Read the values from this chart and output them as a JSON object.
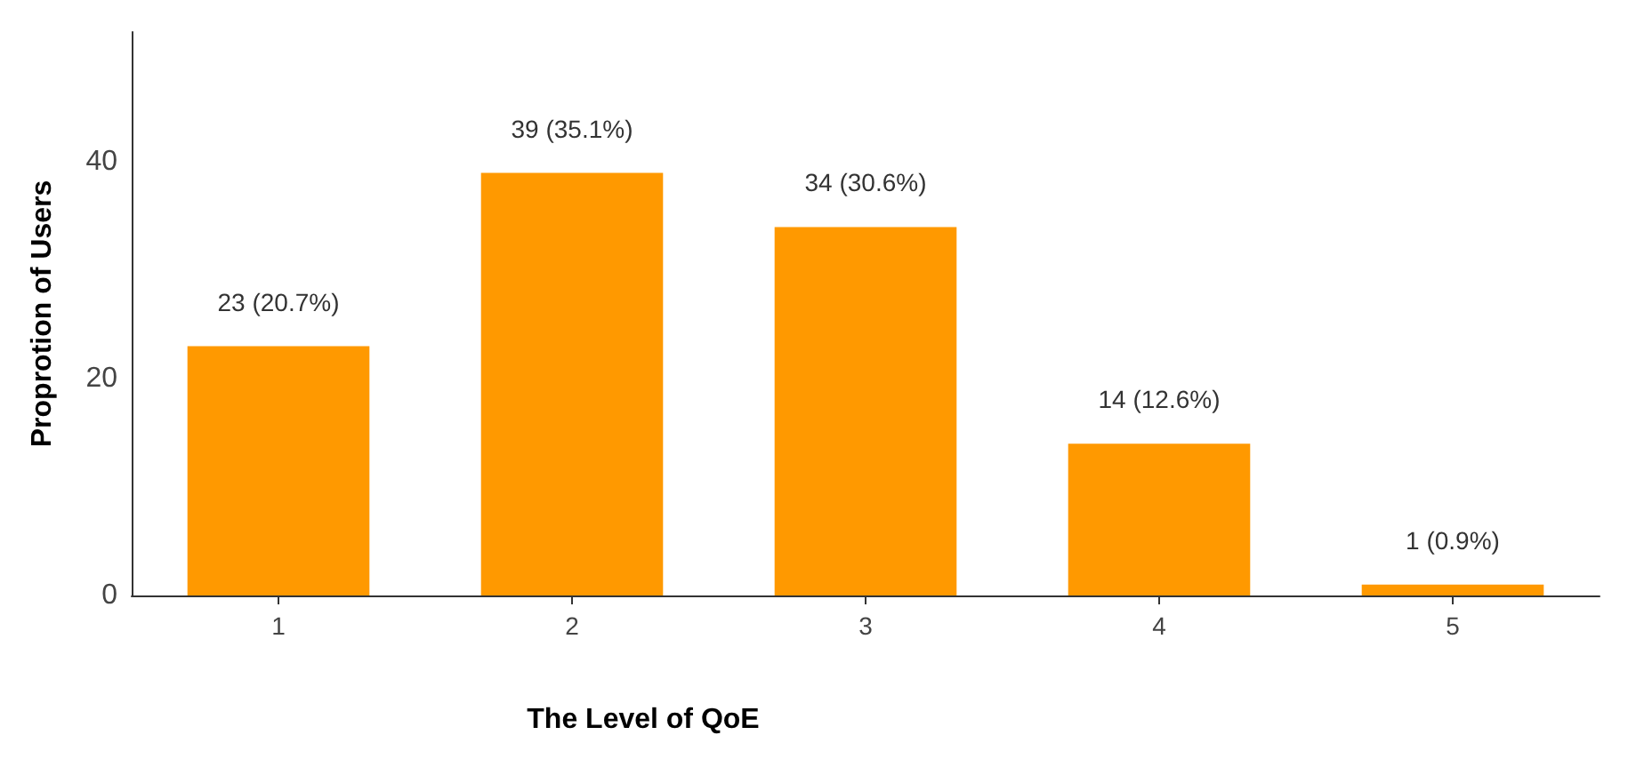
{
  "chart_data": {
    "type": "bar",
    "xlabel": "The Level of QoE",
    "ylabel": "Proprotion of Users",
    "categories": [
      "1",
      "2",
      "3",
      "4",
      "5"
    ],
    "values": [
      23,
      39,
      34,
      14,
      1
    ],
    "value_labels": [
      "23 (20.7%)",
      "39 (35.1%)",
      "34 (30.6%)",
      "14 (12.6%)",
      "1 (0.9%)"
    ],
    "color": "#ff9900",
    "ylim": [
      0,
      52
    ],
    "yticks": [
      0,
      20,
      40
    ],
    "grid": false
  }
}
